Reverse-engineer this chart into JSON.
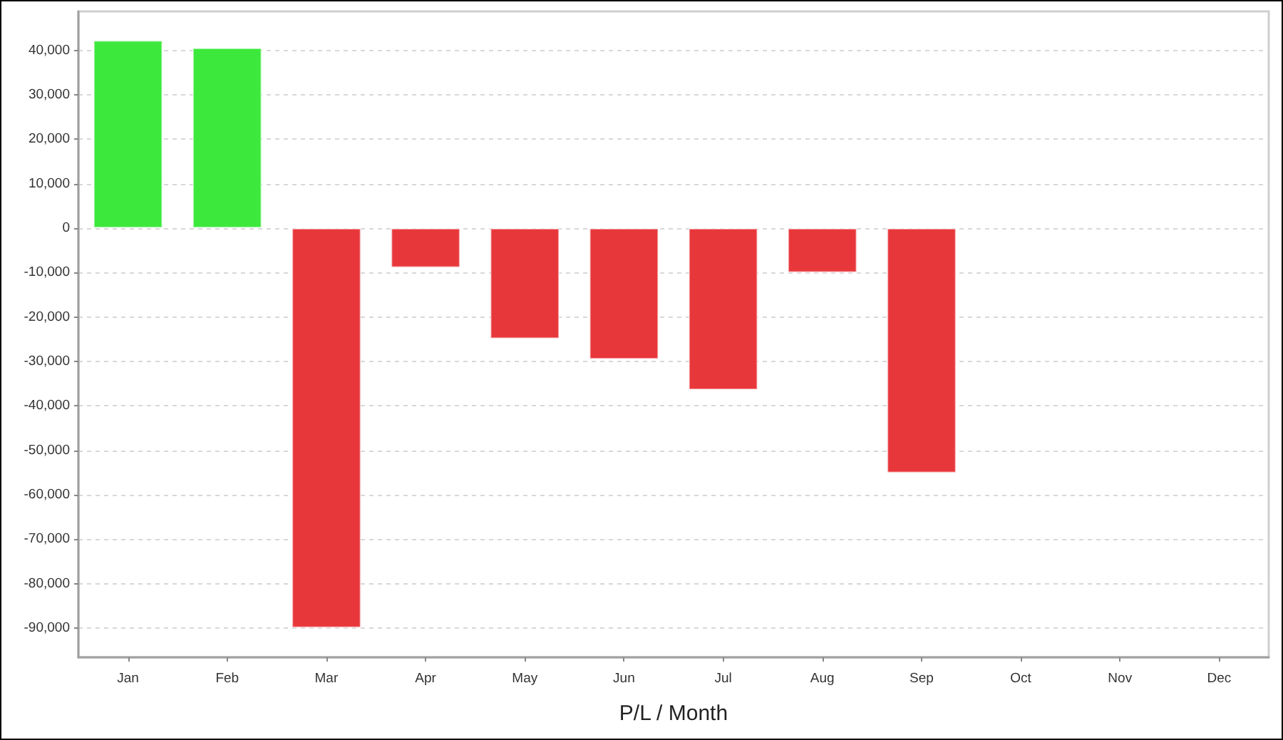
{
  "chart_data": {
    "type": "bar",
    "xlabel": "P/L / Month",
    "categories": [
      "Jan",
      "Feb",
      "Mar",
      "Apr",
      "May",
      "Jun",
      "Jul",
      "Aug",
      "Sep",
      "Oct",
      "Nov",
      "Dec"
    ],
    "values": [
      42300,
      40600,
      -90000,
      -8900,
      -24900,
      -29500,
      -36400,
      -10000,
      -55100,
      null,
      null,
      null
    ],
    "colors": [
      "#3de83d",
      "#3de83d",
      "#e8373b",
      "#e8373b",
      "#e8373b",
      "#e8373b",
      "#e8373b",
      "#e8373b",
      "#e8373b",
      "#e8373b",
      "#e8373b",
      "#e8373b"
    ],
    "ylim": [
      -96600,
      48800
    ],
    "yticks": [
      {
        "value": -90000,
        "label": "-90,000"
      },
      {
        "value": -80000,
        "label": "-80,000"
      },
      {
        "value": -70000,
        "label": "-70,000"
      },
      {
        "value": -60000,
        "label": "-60,000"
      },
      {
        "value": -50000,
        "label": "-50,000"
      },
      {
        "value": -40000,
        "label": "-40,000"
      },
      {
        "value": -30000,
        "label": "-30,000"
      },
      {
        "value": -20000,
        "label": "-20,000"
      },
      {
        "value": -10000,
        "label": "-10,000"
      },
      {
        "value": 0,
        "label": "0"
      },
      {
        "value": 10000,
        "label": "10,000"
      },
      {
        "value": 20000,
        "label": "20,000"
      },
      {
        "value": 30000,
        "label": "30,000"
      },
      {
        "value": 40000,
        "label": "40,000"
      }
    ],
    "grid": "y"
  }
}
